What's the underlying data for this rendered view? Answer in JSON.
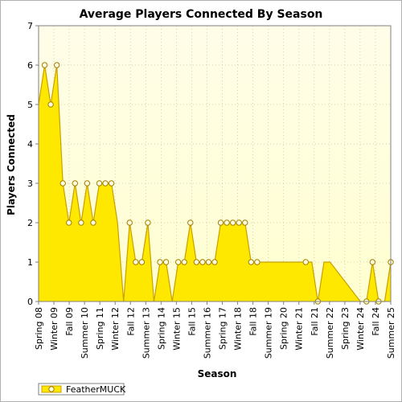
{
  "chart_data": {
    "type": "area",
    "title": "Average Players Connected By Season",
    "xlabel": "Season",
    "ylabel": "Players Connected",
    "ylim": [
      0,
      7
    ],
    "yticks": [
      "0",
      "1",
      "2",
      "3",
      "4",
      "5",
      "6",
      "7"
    ],
    "xtick_labels": [
      "Spring 08",
      "Winter 09",
      "Fall 09",
      "Summer 10",
      "Spring 11",
      "Winter 12",
      "Fall 12",
      "Summer 13",
      "Spring 14",
      "Winter 15",
      "Fall 15",
      "Summer 16",
      "Spring 17",
      "Winter 18",
      "Fall 18",
      "Summer 19",
      "Spring 20",
      "Winter 21",
      "Fall 21",
      "Summer 22",
      "Spring 23",
      "Winter 24",
      "Fall 24",
      "Summer 25"
    ],
    "grid": true,
    "legend_position": "bottom-left",
    "colors": {
      "fill": "#ffe800",
      "line": "#c8a000",
      "marker_fill": "#fffbe0",
      "marker_stroke": "#a08000",
      "plot_bg_top": "#fffde8",
      "plot_bg_bottom": "#ffffd0"
    },
    "series": [
      {
        "name": "FeatherMUCK",
        "values": [
          5,
          6,
          5,
          6,
          3,
          2,
          3,
          2,
          3,
          2,
          3,
          3,
          3,
          2,
          0,
          2,
          1,
          1,
          2,
          0,
          1,
          1,
          0,
          1,
          1,
          2,
          1,
          1,
          1,
          1,
          2,
          2,
          2,
          2,
          2,
          1,
          1,
          1,
          1,
          1,
          1,
          1,
          1,
          1,
          1,
          1,
          0,
          1,
          1,
          0.8,
          0.6,
          0.4,
          0.2,
          0,
          0,
          1,
          0,
          0,
          1
        ],
        "markers": [
          false,
          true,
          true,
          true,
          true,
          true,
          true,
          true,
          true,
          true,
          true,
          true,
          true,
          false,
          false,
          true,
          true,
          true,
          true,
          false,
          true,
          true,
          false,
          true,
          true,
          true,
          true,
          true,
          true,
          true,
          true,
          true,
          true,
          true,
          true,
          true,
          true,
          false,
          false,
          false,
          false,
          false,
          false,
          false,
          true,
          false,
          true,
          false,
          false,
          false,
          false,
          false,
          false,
          false,
          true,
          true,
          true,
          false,
          true
        ]
      }
    ]
  }
}
